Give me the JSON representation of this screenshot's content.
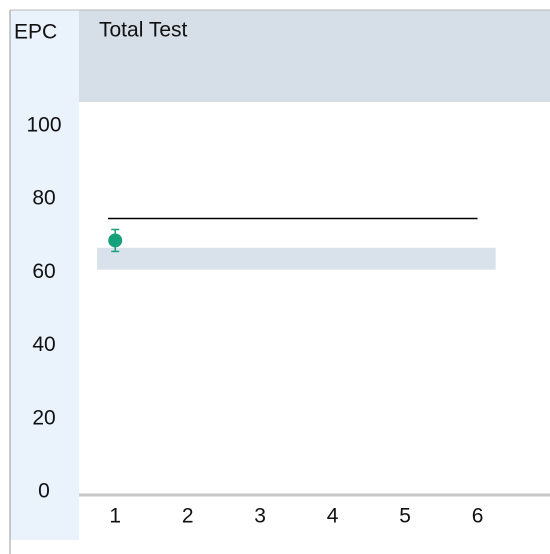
{
  "chart_data": {
    "type": "scatter",
    "title": "Total Test",
    "ylabel": "EPC",
    "x": [
      1
    ],
    "values": [
      69
    ],
    "errors": [
      3
    ],
    "color": "#16a07c",
    "xlim": [
      0.5,
      7
    ],
    "xticks": [
      1,
      2,
      3,
      4,
      5,
      6
    ],
    "ylim": [
      0,
      100
    ],
    "yticks": [
      0,
      20,
      40,
      60,
      80,
      100
    ],
    "reference_line": {
      "y": 75,
      "xlim": [
        0.9,
        6
      ],
      "color": "#000000"
    },
    "band": {
      "ylim": [
        61,
        67
      ],
      "xlim": [
        0.75,
        6.25
      ],
      "color": "#d9e2ea"
    }
  }
}
